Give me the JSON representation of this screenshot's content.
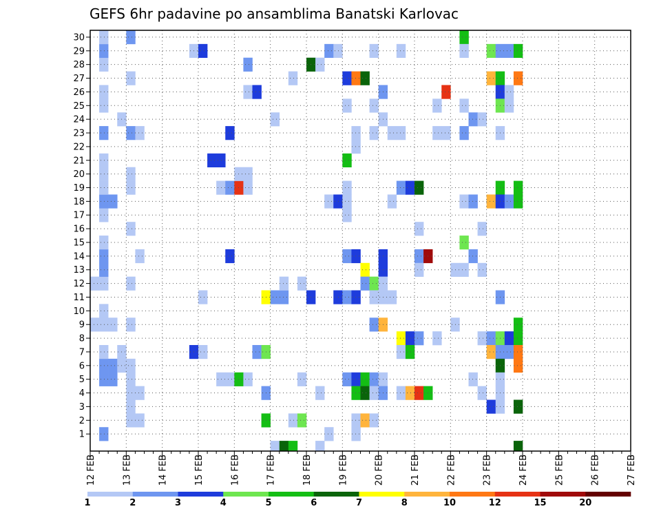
{
  "chart_data": {
    "type": "heatmap",
    "title": "GEFS 6hr padavine po ansamblima Banatski Karlovac",
    "xlabel": "",
    "ylabel": "",
    "x_tick_labels": [
      "12 FEB",
      "13 FEB",
      "14 FEB",
      "15 FEB",
      "16 FEB",
      "17 FEB",
      "18 FEB",
      "19 FEB",
      "20 FEB",
      "21 FEB",
      "22 FEB",
      "23 FEB",
      "24 FEB",
      "25 FEB",
      "26 FEB",
      "27 FEB"
    ],
    "x_step": "6hr",
    "n_steps": 60,
    "y_tick_labels": [
      "1",
      "2",
      "3",
      "4",
      "5",
      "6",
      "7",
      "8",
      "9",
      "10",
      "11",
      "12",
      "13",
      "14",
      "15",
      "16",
      "17",
      "18",
      "19",
      "20",
      "21",
      "22",
      "23",
      "24",
      "25",
      "26",
      "27",
      "28",
      "29",
      "30"
    ],
    "ylim": [
      0,
      30
    ],
    "grid": true,
    "colorbar": {
      "position": "bottom",
      "tick_labels": [
        "1",
        "2",
        "3",
        "4",
        "5",
        "6",
        "7",
        "8",
        "10",
        "12",
        "15",
        "20"
      ],
      "colors": [
        "#b4c8f5",
        "#6e96f0",
        "#1e3cdc",
        "#6ee650",
        "#14be14",
        "#0a640a",
        "#ffff00",
        "#ffb43c",
        "#ff7814",
        "#e63214",
        "#a00a0a",
        "#640000"
      ]
    },
    "level_note": "cells value = color bin index (0-based) into colorbar.colors",
    "cells": [
      {
        "t": 1,
        "m": 1,
        "v": 1
      },
      {
        "t": 1,
        "m": 5,
        "v": 1
      },
      {
        "t": 1,
        "m": 6,
        "v": 1
      },
      {
        "t": 1,
        "m": 7,
        "v": 0
      },
      {
        "t": 1,
        "m": 9,
        "v": 0
      },
      {
        "t": 1,
        "m": 10,
        "v": 0
      },
      {
        "t": 1,
        "m": 12,
        "v": 0
      },
      {
        "t": 1,
        "m": 13,
        "v": 1
      },
      {
        "t": 1,
        "m": 14,
        "v": 1
      },
      {
        "t": 1,
        "m": 15,
        "v": 0
      },
      {
        "t": 1,
        "m": 17,
        "v": 0
      },
      {
        "t": 1,
        "m": 18,
        "v": 1
      },
      {
        "t": 1,
        "m": 19,
        "v": 0
      },
      {
        "t": 1,
        "m": 20,
        "v": 0
      },
      {
        "t": 1,
        "m": 21,
        "v": 0
      },
      {
        "t": 1,
        "m": 23,
        "v": 1
      },
      {
        "t": 1,
        "m": 25,
        "v": 0
      },
      {
        "t": 1,
        "m": 26,
        "v": 0
      },
      {
        "t": 1,
        "m": 28,
        "v": 0
      },
      {
        "t": 1,
        "m": 29,
        "v": 1
      },
      {
        "t": 1,
        "m": 30,
        "v": 0
      },
      {
        "t": 0,
        "m": 9,
        "v": 0
      },
      {
        "t": 0,
        "m": 12,
        "v": 0
      },
      {
        "t": 2,
        "m": 5,
        "v": 1
      },
      {
        "t": 2,
        "m": 6,
        "v": 1
      },
      {
        "t": 2,
        "m": 9,
        "v": 0
      },
      {
        "t": 2,
        "m": 18,
        "v": 1
      },
      {
        "t": 3,
        "m": 6,
        "v": 0
      },
      {
        "t": 3,
        "m": 7,
        "v": 0
      },
      {
        "t": 3,
        "m": 24,
        "v": 0
      },
      {
        "t": 4,
        "m": 2,
        "v": 0
      },
      {
        "t": 4,
        "m": 3,
        "v": 0
      },
      {
        "t": 4,
        "m": 4,
        "v": 0
      },
      {
        "t": 4,
        "m": 5,
        "v": 0
      },
      {
        "t": 4,
        "m": 6,
        "v": 0
      },
      {
        "t": 4,
        "m": 9,
        "v": 0
      },
      {
        "t": 4,
        "m": 12,
        "v": 0
      },
      {
        "t": 4,
        "m": 16,
        "v": 0
      },
      {
        "t": 4,
        "m": 19,
        "v": 0
      },
      {
        "t": 4,
        "m": 20,
        "v": 0
      },
      {
        "t": 4,
        "m": 23,
        "v": 1
      },
      {
        "t": 4,
        "m": 27,
        "v": 0
      },
      {
        "t": 4,
        "m": 30,
        "v": 1
      },
      {
        "t": 5,
        "m": 2,
        "v": 0
      },
      {
        "t": 5,
        "m": 4,
        "v": 0
      },
      {
        "t": 5,
        "m": 14,
        "v": 0
      },
      {
        "t": 5,
        "m": 23,
        "v": 0
      },
      {
        "t": 11,
        "m": 29,
        "v": 0
      },
      {
        "t": 11,
        "m": 7,
        "v": 2
      },
      {
        "t": 12,
        "m": 29,
        "v": 2
      },
      {
        "t": 12,
        "m": 7,
        "v": 0
      },
      {
        "t": 12,
        "m": 11,
        "v": 0
      },
      {
        "t": 13,
        "m": 21,
        "v": 2
      },
      {
        "t": 14,
        "m": 21,
        "v": 2
      },
      {
        "t": 14,
        "m": 5,
        "v": 0
      },
      {
        "t": 14,
        "m": 19,
        "v": 0
      },
      {
        "t": 15,
        "m": 5,
        "v": 0
      },
      {
        "t": 15,
        "m": 19,
        "v": 1
      },
      {
        "t": 15,
        "m": 23,
        "v": 2
      },
      {
        "t": 15,
        "m": 14,
        "v": 2
      },
      {
        "t": 16,
        "m": 5,
        "v": 4
      },
      {
        "t": 16,
        "m": 19,
        "v": 9
      },
      {
        "t": 16,
        "m": 20,
        "v": 0
      },
      {
        "t": 17,
        "m": 5,
        "v": 0
      },
      {
        "t": 17,
        "m": 19,
        "v": 0
      },
      {
        "t": 17,
        "m": 20,
        "v": 0
      },
      {
        "t": 17,
        "m": 26,
        "v": 0
      },
      {
        "t": 17,
        "m": 28,
        "v": 1
      },
      {
        "t": 18,
        "m": 7,
        "v": 1
      },
      {
        "t": 18,
        "m": 26,
        "v": 2
      },
      {
        "t": 19,
        "m": 7,
        "v": 3
      },
      {
        "t": 19,
        "m": 11,
        "v": 6
      },
      {
        "t": 19,
        "m": 2,
        "v": 4
      },
      {
        "t": 19,
        "m": 4,
        "v": 1
      },
      {
        "t": 20,
        "m": 11,
        "v": 1
      },
      {
        "t": 20,
        "m": 24,
        "v": 0
      },
      {
        "t": 20,
        "m": 0,
        "v": 0
      },
      {
        "t": 21,
        "m": 11,
        "v": 1
      },
      {
        "t": 21,
        "m": 12,
        "v": 0
      },
      {
        "t": 21,
        "m": 0,
        "v": 5
      },
      {
        "t": 22,
        "m": 2,
        "v": 0
      },
      {
        "t": 22,
        "m": 27,
        "v": 0
      },
      {
        "t": 22,
        "m": 0,
        "v": 4
      },
      {
        "t": 23,
        "m": 2,
        "v": 3
      },
      {
        "t": 23,
        "m": 5,
        "v": 0
      },
      {
        "t": 23,
        "m": 12,
        "v": 0
      },
      {
        "t": 24,
        "m": 28,
        "v": 5
      },
      {
        "t": 24,
        "m": 11,
        "v": 2
      },
      {
        "t": 25,
        "m": 28,
        "v": 0
      },
      {
        "t": 25,
        "m": 4,
        "v": 0
      },
      {
        "t": 25,
        "m": 0,
        "v": 0
      },
      {
        "t": 26,
        "m": 29,
        "v": 1
      },
      {
        "t": 26,
        "m": 18,
        "v": 0
      },
      {
        "t": 26,
        "m": 1,
        "v": 0
      },
      {
        "t": 27,
        "m": 29,
        "v": 0
      },
      {
        "t": 27,
        "m": 18,
        "v": 2
      },
      {
        "t": 27,
        "m": 11,
        "v": 2
      },
      {
        "t": 28,
        "m": 27,
        "v": 2
      },
      {
        "t": 28,
        "m": 25,
        "v": 0
      },
      {
        "t": 28,
        "m": 21,
        "v": 4
      },
      {
        "t": 28,
        "m": 19,
        "v": 0
      },
      {
        "t": 28,
        "m": 18,
        "v": 0
      },
      {
        "t": 28,
        "m": 17,
        "v": 0
      },
      {
        "t": 28,
        "m": 14,
        "v": 1
      },
      {
        "t": 28,
        "m": 11,
        "v": 1
      },
      {
        "t": 28,
        "m": 5,
        "v": 1
      },
      {
        "t": 29,
        "m": 27,
        "v": 8
      },
      {
        "t": 29,
        "m": 14,
        "v": 2
      },
      {
        "t": 29,
        "m": 11,
        "v": 2
      },
      {
        "t": 29,
        "m": 5,
        "v": 2
      },
      {
        "t": 29,
        "m": 4,
        "v": 4
      },
      {
        "t": 29,
        "m": 23,
        "v": 0
      },
      {
        "t": 29,
        "m": 22,
        "v": 0
      },
      {
        "t": 29,
        "m": 2,
        "v": 0
      },
      {
        "t": 29,
        "m": 1,
        "v": 0
      },
      {
        "t": 30,
        "m": 27,
        "v": 5
      },
      {
        "t": 30,
        "m": 5,
        "v": 4
      },
      {
        "t": 30,
        "m": 13,
        "v": 6
      },
      {
        "t": 30,
        "m": 12,
        "v": 1
      },
      {
        "t": 30,
        "m": 2,
        "v": 7
      },
      {
        "t": 30,
        "m": 4,
        "v": 5
      },
      {
        "t": 31,
        "m": 29,
        "v": 0
      },
      {
        "t": 31,
        "m": 25,
        "v": 0
      },
      {
        "t": 31,
        "m": 23,
        "v": 0
      },
      {
        "t": 31,
        "m": 12,
        "v": 3
      },
      {
        "t": 31,
        "m": 11,
        "v": 0
      },
      {
        "t": 31,
        "m": 9,
        "v": 1
      },
      {
        "t": 31,
        "m": 5,
        "v": 1
      },
      {
        "t": 31,
        "m": 4,
        "v": 0
      },
      {
        "t": 31,
        "m": 2,
        "v": 0
      },
      {
        "t": 32,
        "m": 26,
        "v": 1
      },
      {
        "t": 32,
        "m": 24,
        "v": 0
      },
      {
        "t": 32,
        "m": 14,
        "v": 2
      },
      {
        "t": 32,
        "m": 13,
        "v": 2
      },
      {
        "t": 32,
        "m": 12,
        "v": 0
      },
      {
        "t": 32,
        "m": 11,
        "v": 0
      },
      {
        "t": 32,
        "m": 9,
        "v": 7
      },
      {
        "t": 32,
        "m": 5,
        "v": 0
      },
      {
        "t": 32,
        "m": 4,
        "v": 1
      },
      {
        "t": 33,
        "m": 11,
        "v": 0
      },
      {
        "t": 33,
        "m": 18,
        "v": 0
      },
      {
        "t": 33,
        "m": 23,
        "v": 0
      },
      {
        "t": 34,
        "m": 29,
        "v": 0
      },
      {
        "t": 34,
        "m": 23,
        "v": 0
      },
      {
        "t": 34,
        "m": 19,
        "v": 1
      },
      {
        "t": 34,
        "m": 8,
        "v": 6
      },
      {
        "t": 34,
        "m": 7,
        "v": 0
      },
      {
        "t": 34,
        "m": 4,
        "v": 0
      },
      {
        "t": 35,
        "m": 19,
        "v": 2
      },
      {
        "t": 35,
        "m": 8,
        "v": 2
      },
      {
        "t": 35,
        "m": 7,
        "v": 4
      },
      {
        "t": 35,
        "m": 4,
        "v": 7
      },
      {
        "t": 36,
        "m": 19,
        "v": 5
      },
      {
        "t": 36,
        "m": 16,
        "v": 0
      },
      {
        "t": 36,
        "m": 14,
        "v": 1
      },
      {
        "t": 36,
        "m": 13,
        "v": 0
      },
      {
        "t": 36,
        "m": 4,
        "v": 9
      },
      {
        "t": 36,
        "m": 8,
        "v": 1
      },
      {
        "t": 37,
        "m": 14,
        "v": 10
      },
      {
        "t": 37,
        "m": 4,
        "v": 4
      },
      {
        "t": 38,
        "m": 23,
        "v": 0
      },
      {
        "t": 38,
        "m": 25,
        "v": 0
      },
      {
        "t": 38,
        "m": 8,
        "v": 0
      },
      {
        "t": 39,
        "m": 26,
        "v": 9
      },
      {
        "t": 39,
        "m": 23,
        "v": 0
      },
      {
        "t": 40,
        "m": 13,
        "v": 0
      },
      {
        "t": 40,
        "m": 9,
        "v": 0
      },
      {
        "t": 41,
        "m": 30,
        "v": 4
      },
      {
        "t": 41,
        "m": 29,
        "v": 0
      },
      {
        "t": 41,
        "m": 25,
        "v": 0
      },
      {
        "t": 41,
        "m": 23,
        "v": 1
      },
      {
        "t": 41,
        "m": 18,
        "v": 0
      },
      {
        "t": 41,
        "m": 15,
        "v": 3
      },
      {
        "t": 41,
        "m": 13,
        "v": 0
      },
      {
        "t": 42,
        "m": 24,
        "v": 1
      },
      {
        "t": 42,
        "m": 14,
        "v": 1
      },
      {
        "t": 42,
        "m": 5,
        "v": 0
      },
      {
        "t": 42,
        "m": 18,
        "v": 1
      },
      {
        "t": 43,
        "m": 24,
        "v": 0
      },
      {
        "t": 43,
        "m": 16,
        "v": 0
      },
      {
        "t": 43,
        "m": 13,
        "v": 0
      },
      {
        "t": 43,
        "m": 8,
        "v": 0
      },
      {
        "t": 43,
        "m": 4,
        "v": 0
      },
      {
        "t": 44,
        "m": 29,
        "v": 3
      },
      {
        "t": 44,
        "m": 27,
        "v": 7
      },
      {
        "t": 44,
        "m": 18,
        "v": 7
      },
      {
        "t": 44,
        "m": 8,
        "v": 1
      },
      {
        "t": 44,
        "m": 7,
        "v": 7
      },
      {
        "t": 44,
        "m": 3,
        "v": 2
      },
      {
        "t": 45,
        "m": 29,
        "v": 1
      },
      {
        "t": 45,
        "m": 27,
        "v": 4
      },
      {
        "t": 45,
        "m": 26,
        "v": 2
      },
      {
        "t": 45,
        "m": 25,
        "v": 3
      },
      {
        "t": 45,
        "m": 23,
        "v": 0
      },
      {
        "t": 45,
        "m": 19,
        "v": 4
      },
      {
        "t": 45,
        "m": 18,
        "v": 2
      },
      {
        "t": 45,
        "m": 11,
        "v": 1
      },
      {
        "t": 45,
        "m": 8,
        "v": 3
      },
      {
        "t": 45,
        "m": 7,
        "v": 1
      },
      {
        "t": 45,
        "m": 6,
        "v": 5
      },
      {
        "t": 45,
        "m": 5,
        "v": 0
      },
      {
        "t": 45,
        "m": 4,
        "v": 0
      },
      {
        "t": 45,
        "m": 3,
        "v": 0
      },
      {
        "t": 46,
        "m": 29,
        "v": 1
      },
      {
        "t": 46,
        "m": 26,
        "v": 0
      },
      {
        "t": 46,
        "m": 25,
        "v": 0
      },
      {
        "t": 46,
        "m": 18,
        "v": 1
      },
      {
        "t": 46,
        "m": 8,
        "v": 2
      },
      {
        "t": 46,
        "m": 7,
        "v": 1
      },
      {
        "t": 47,
        "m": 29,
        "v": 4
      },
      {
        "t": 47,
        "m": 27,
        "v": 8
      },
      {
        "t": 47,
        "m": 19,
        "v": 4
      },
      {
        "t": 47,
        "m": 18,
        "v": 4
      },
      {
        "t": 47,
        "m": 9,
        "v": 4
      },
      {
        "t": 47,
        "m": 8,
        "v": 4
      },
      {
        "t": 47,
        "m": 7,
        "v": 8
      },
      {
        "t": 47,
        "m": 6,
        "v": 8
      },
      {
        "t": 47,
        "m": 3,
        "v": 5
      },
      {
        "t": 47,
        "m": 0,
        "v": 5
      }
    ]
  }
}
